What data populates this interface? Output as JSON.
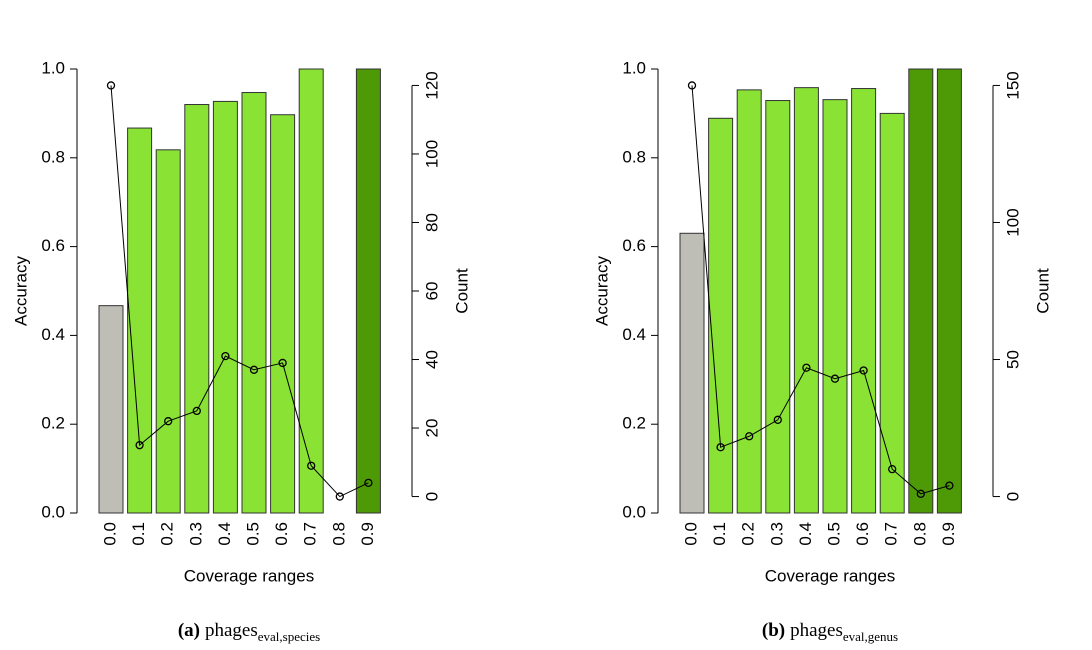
{
  "chart_data": [
    {
      "type": "bar",
      "caption_label": "(a)",
      "caption_text": "phages",
      "caption_subscript": "eval,species",
      "x_label": "Coverage ranges",
      "y_label": "Accuracy",
      "y2_label": "Count",
      "categories": [
        "0.0",
        "0.1",
        "0.2",
        "0.3",
        "0.4",
        "0.5",
        "0.6",
        "0.7",
        "0.8",
        "0.9"
      ],
      "ylim": [
        0,
        1
      ],
      "yticks": [
        {
          "value": 0,
          "label": "0.0"
        },
        0.2,
        0.4,
        0.6,
        0.8,
        {
          "value": 1,
          "label": "1.0"
        }
      ],
      "y2lim": [
        -4.8,
        124.8
      ],
      "y2ticks": [
        0,
        20,
        40,
        60,
        80,
        100,
        120
      ],
      "series": [
        {
          "type": "bar",
          "values": [
            0.467,
            0.867,
            0.818,
            0.92,
            0.927,
            0.947,
            0.897,
            1.0,
            0,
            1.0
          ],
          "colors": [
            "#bebeb6",
            "#8ae234",
            "#8ae234",
            "#8ae234",
            "#8ae234",
            "#8ae234",
            "#8ae234",
            "#8ae234",
            "#4e9a06",
            "#4e9a06"
          ]
        },
        {
          "type": "line",
          "axis": "y2",
          "color": "#000000",
          "values": [
            120,
            15,
            22,
            25,
            41,
            37,
            39,
            9,
            0,
            4
          ]
        }
      ]
    },
    {
      "type": "bar",
      "caption_label": "(b)",
      "caption_text": "phages",
      "caption_subscript": "eval,genus",
      "x_label": "Coverage ranges",
      "y_label": "Accuracy",
      "y2_label": "Count",
      "categories": [
        "0.0",
        "0.1",
        "0.2",
        "0.3",
        "0.4",
        "0.5",
        "0.6",
        "0.7",
        "0.8",
        "0.9"
      ],
      "ylim": [
        0,
        1
      ],
      "yticks": [
        {
          "value": 0,
          "label": "0.0"
        },
        0.2,
        0.4,
        0.6,
        0.8,
        {
          "value": 1,
          "label": "1.0"
        }
      ],
      "y2lim": [
        -6,
        156
      ],
      "y2ticks": [
        0,
        50,
        100,
        150
      ],
      "series": [
        {
          "type": "bar",
          "values": [
            0.63,
            0.889,
            0.953,
            0.929,
            0.958,
            0.931,
            0.956,
            0.9,
            1.0,
            1.0
          ],
          "colors": [
            "#bebeb6",
            "#8ae234",
            "#8ae234",
            "#8ae234",
            "#8ae234",
            "#8ae234",
            "#8ae234",
            "#8ae234",
            "#4e9a06",
            "#4e9a06"
          ]
        },
        {
          "type": "line",
          "axis": "y2",
          "color": "#000000",
          "values": [
            150,
            18,
            22,
            28,
            47,
            43,
            46,
            10,
            1,
            4
          ]
        }
      ]
    }
  ]
}
